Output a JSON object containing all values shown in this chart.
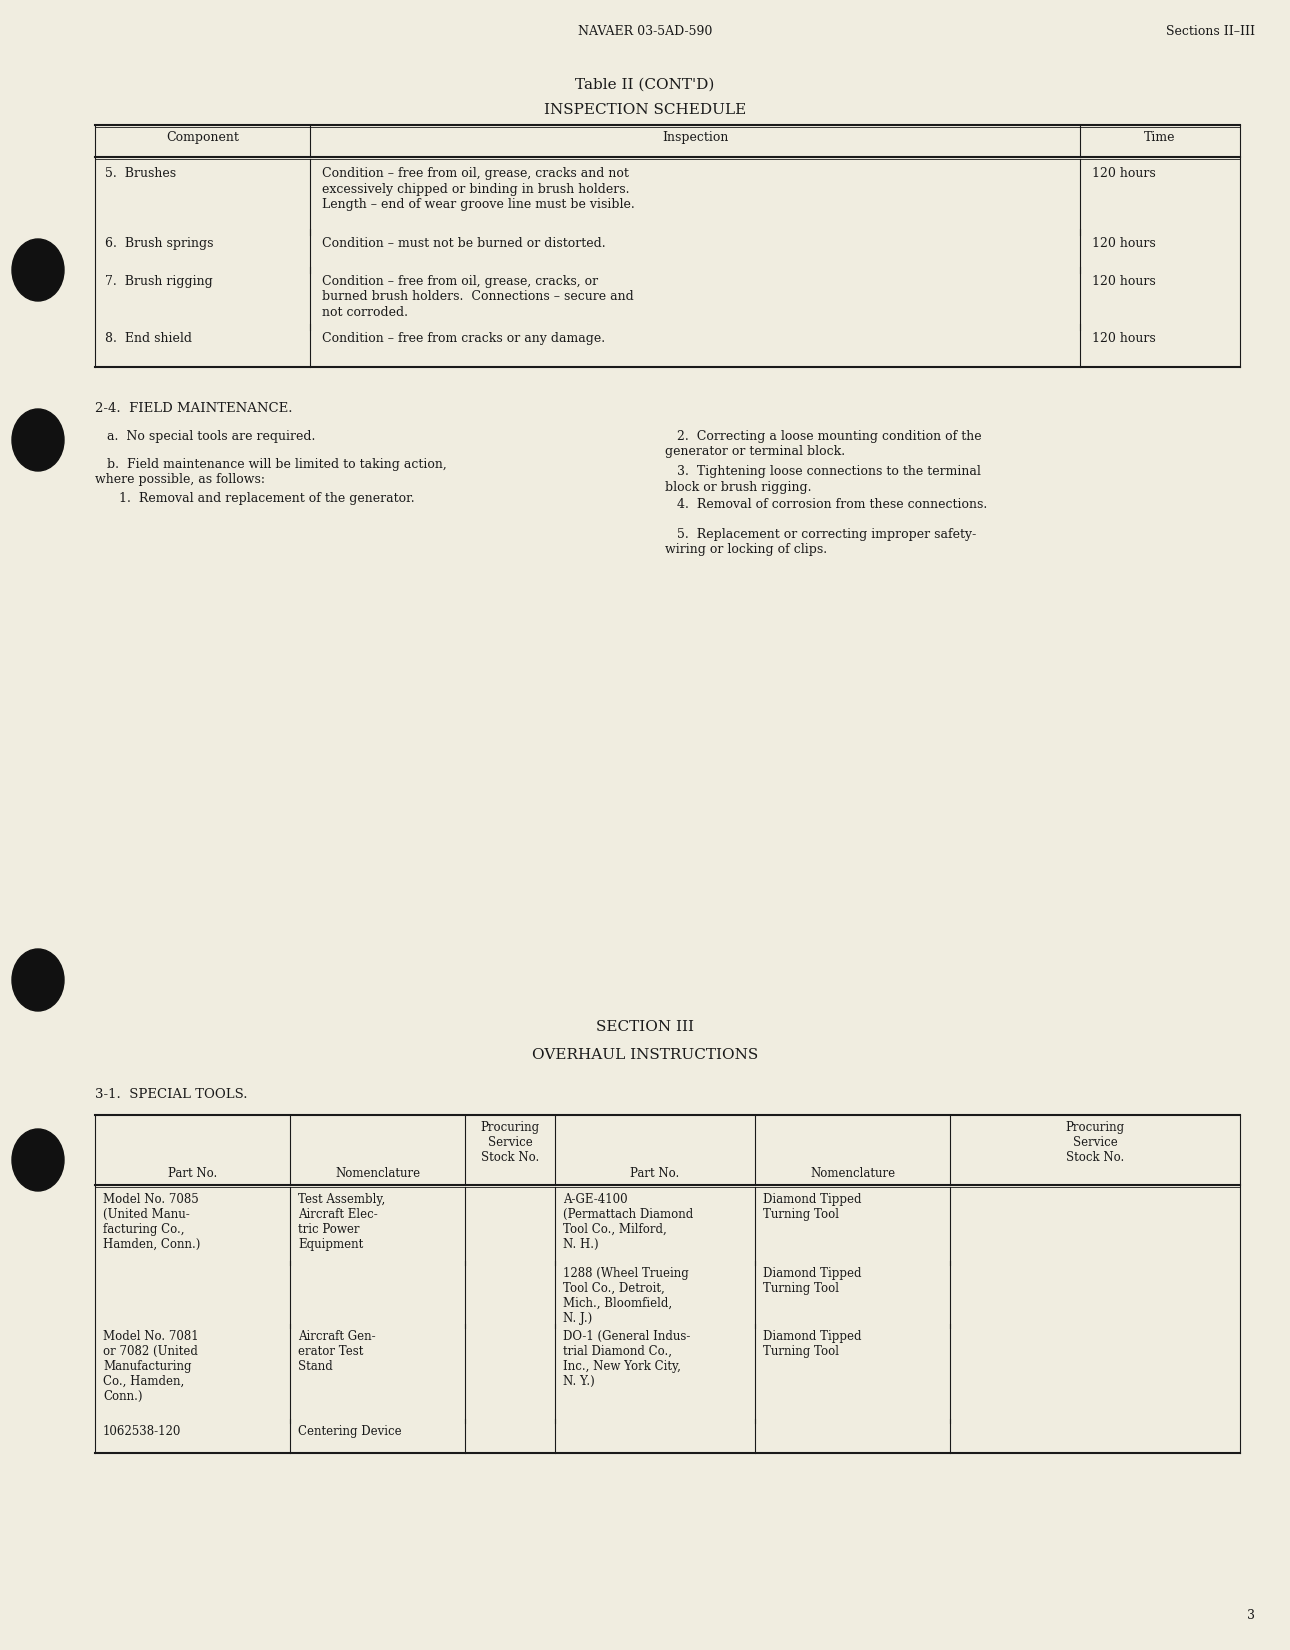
{
  "bg_color": "#f0ede0",
  "text_color": "#1a1a1a",
  "header_left": "NAVAER 03-5AD-590",
  "header_right": "Sections II–III",
  "table1_title1": "Table II (CONT'D)",
  "table1_title2": "INSPECTION SCHEDULE",
  "table1_headers": [
    "Component",
    "Inspection",
    "Time"
  ],
  "table1_rows": [
    [
      "5.  Brushes",
      "Condition – free from oil, grease, cracks and not\nexcessively chipped or binding in brush holders.\nLength – end of wear groove line must be visible.",
      "120 hours"
    ],
    [
      "6.  Brush springs",
      "Condition – must not be burned or distorted.",
      "120 hours"
    ],
    [
      "7.  Brush rigging",
      "Condition – free from oil, grease, cracks, or\nburned brush holders.  Connections – secure and\nnot corroded.",
      "120 hours"
    ],
    [
      "8.  End shield",
      "Condition – free from cracks or any damage.",
      "120 hours"
    ]
  ],
  "section_heading": "2-4.  FIELD MAINTENANCE.",
  "col1_paragraphs": [
    "   a.  No special tools are required.",
    "   b.  Field maintenance will be limited to taking action,\nwhere possible, as follows:",
    "      1.  Removal and replacement of the generator."
  ],
  "col2_paragraphs": [
    "   2.  Correcting a loose mounting condition of the\ngenerator or terminal block.",
    "   3.  Tightening loose connections to the terminal\nblock or brush rigging.",
    "   4.  Removal of corrosion from these connections.",
    "   5.  Replacement or correcting improper safety-\nwiring or locking of clips."
  ],
  "section3_heading": "SECTION III",
  "section3_subheading": "OVERHAUL INSTRUCTIONS",
  "section3_label": "3-1.  SPECIAL TOOLS.",
  "table2_rows": [
    [
      "Model No. 7085\n(United Manu-\nfacturing Co.,\nHamden, Conn.)",
      "Test Assembly,\nAircraft Elec-\ntric Power\nEquipment",
      "",
      "A-GE-4100\n(Permattach Diamond\nTool Co., Milford,\nN. H.)",
      "Diamond Tipped\nTurning Tool",
      ""
    ],
    [
      "",
      "",
      "",
      "1288 (Wheel Trueing\nTool Co., Detroit,\nMich., Bloomfield,\nN. J.)",
      "Diamond Tipped\nTurning Tool",
      ""
    ],
    [
      "Model No. 7081\nor 7082 (United\nManufacturing\nCo., Hamden,\nConn.)",
      "Aircraft Gen-\nerator Test\nStand",
      "",
      "DO-1 (General Indus-\ntrial Diamond Co.,\nInc., New York City,\nN. Y.)",
      "Diamond Tipped\nTurning Tool",
      ""
    ],
    [
      "1062538-120",
      "Centering Device",
      "",
      "",
      "",
      ""
    ]
  ],
  "page_number": "3"
}
